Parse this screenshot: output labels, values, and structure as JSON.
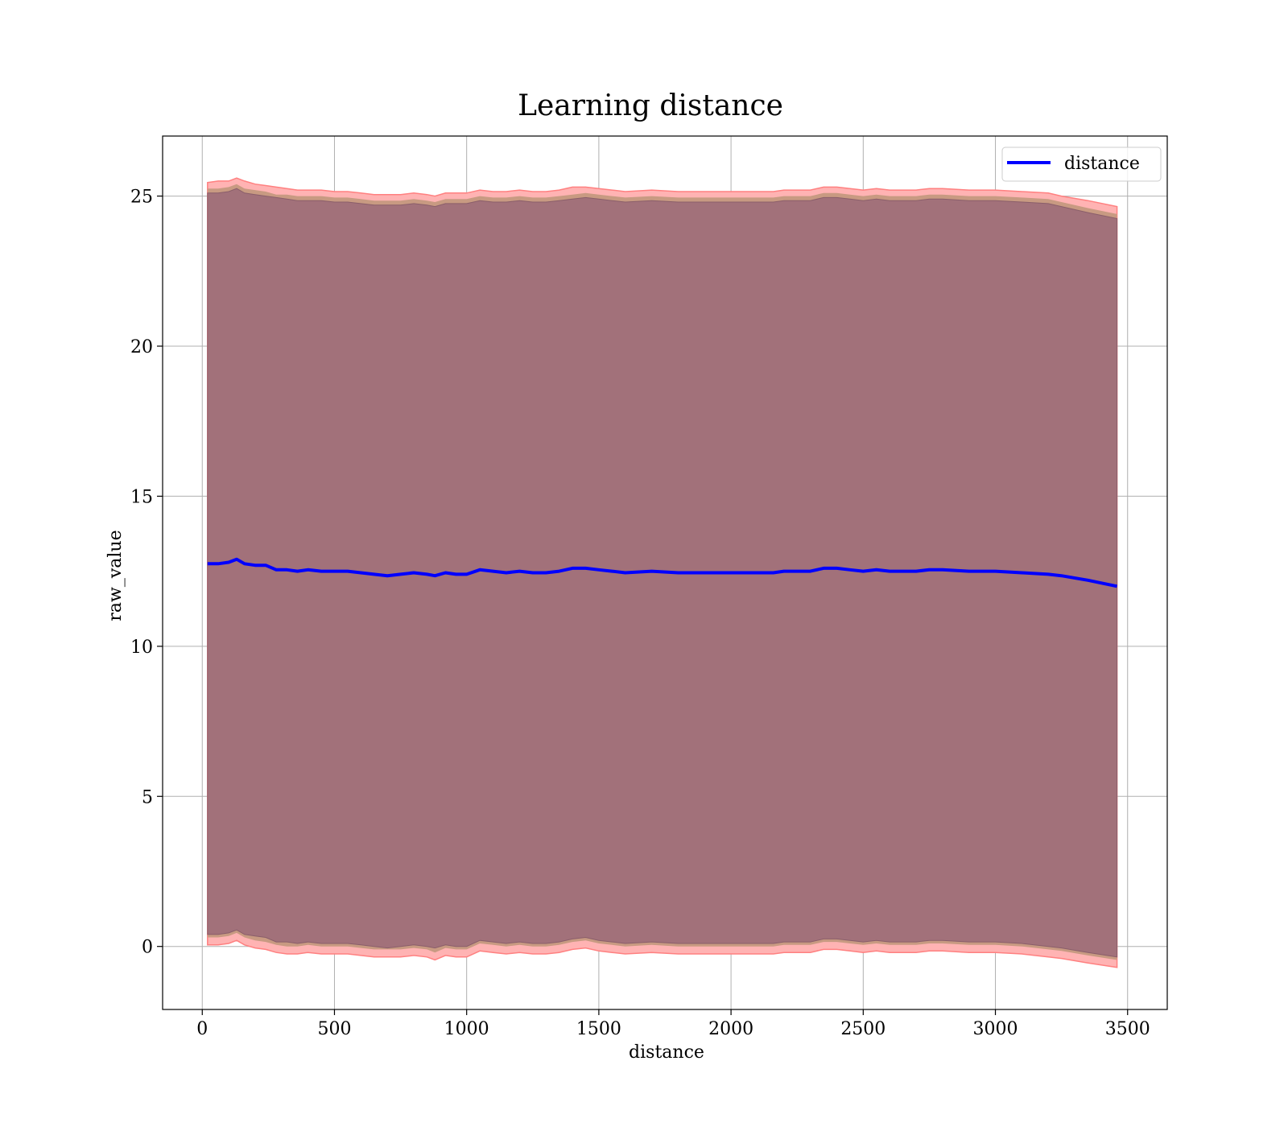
{
  "chart_data": {
    "type": "line",
    "title": "Learning distance",
    "xlabel": "distance",
    "ylabel": "raw_value",
    "xlim": [
      -150,
      3650
    ],
    "ylim": [
      -2.1,
      27
    ],
    "xticks": [
      0,
      500,
      1000,
      1500,
      2000,
      2500,
      3000,
      3500
    ],
    "yticks": [
      0,
      5,
      10,
      15,
      20,
      25
    ],
    "grid": true,
    "legend_position": "top-right",
    "colors": {
      "line": "#0000ff",
      "band_outer": "#ffb3b3",
      "band_outer_edge": "#ff8080",
      "band_mid": "#c89a82",
      "band_inner": "#a2717a",
      "grid": "#b0b0b0"
    },
    "x": [
      20,
      60,
      100,
      130,
      160,
      200,
      240,
      280,
      320,
      360,
      400,
      450,
      500,
      550,
      600,
      650,
      700,
      750,
      800,
      850,
      880,
      920,
      960,
      1000,
      1050,
      1100,
      1150,
      1200,
      1250,
      1300,
      1350,
      1400,
      1450,
      1500,
      1550,
      1600,
      1700,
      1800,
      1900,
      2000,
      2100,
      2160,
      2200,
      2300,
      2350,
      2400,
      2450,
      2500,
      2550,
      2600,
      2700,
      2750,
      2800,
      2900,
      3000,
      3100,
      3200,
      3250,
      3350,
      3460
    ],
    "series": [
      {
        "name": "distance",
        "role": "line",
        "values": [
          12.75,
          12.75,
          12.8,
          12.9,
          12.75,
          12.7,
          12.7,
          12.55,
          12.55,
          12.5,
          12.55,
          12.5,
          12.5,
          12.5,
          12.45,
          12.4,
          12.35,
          12.4,
          12.45,
          12.4,
          12.35,
          12.45,
          12.4,
          12.4,
          12.55,
          12.5,
          12.45,
          12.5,
          12.45,
          12.45,
          12.5,
          12.6,
          12.6,
          12.55,
          12.5,
          12.45,
          12.5,
          12.45,
          12.45,
          12.45,
          12.45,
          12.45,
          12.5,
          12.5,
          12.6,
          12.6,
          12.55,
          12.5,
          12.55,
          12.5,
          12.5,
          12.55,
          12.55,
          12.5,
          12.5,
          12.45,
          12.4,
          12.35,
          12.2,
          12.0
        ]
      },
      {
        "role": "band_outer_upper",
        "values": [
          25.45,
          25.5,
          25.5,
          25.6,
          25.5,
          25.4,
          25.35,
          25.3,
          25.25,
          25.2,
          25.2,
          25.2,
          25.15,
          25.15,
          25.1,
          25.05,
          25.05,
          25.05,
          25.1,
          25.05,
          25.0,
          25.1,
          25.1,
          25.1,
          25.2,
          25.15,
          25.15,
          25.2,
          25.15,
          25.15,
          25.2,
          25.3,
          25.3,
          25.25,
          25.2,
          25.15,
          25.2,
          25.15,
          25.15,
          25.15,
          25.15,
          25.15,
          25.2,
          25.2,
          25.3,
          25.3,
          25.25,
          25.2,
          25.25,
          25.2,
          25.2,
          25.25,
          25.25,
          25.2,
          25.2,
          25.15,
          25.1,
          25.0,
          24.85,
          24.65
        ]
      },
      {
        "role": "band_outer_lower",
        "values": [
          0.05,
          0.05,
          0.1,
          0.2,
          0.05,
          -0.05,
          -0.1,
          -0.2,
          -0.25,
          -0.25,
          -0.2,
          -0.25,
          -0.25,
          -0.25,
          -0.3,
          -0.35,
          -0.35,
          -0.35,
          -0.3,
          -0.35,
          -0.45,
          -0.3,
          -0.35,
          -0.35,
          -0.15,
          -0.2,
          -0.25,
          -0.2,
          -0.25,
          -0.25,
          -0.2,
          -0.1,
          -0.05,
          -0.15,
          -0.2,
          -0.25,
          -0.2,
          -0.25,
          -0.25,
          -0.25,
          -0.25,
          -0.25,
          -0.2,
          -0.2,
          -0.1,
          -0.1,
          -0.15,
          -0.2,
          -0.15,
          -0.2,
          -0.2,
          -0.15,
          -0.15,
          -0.2,
          -0.2,
          -0.25,
          -0.35,
          -0.4,
          -0.55,
          -0.7
        ]
      },
      {
        "role": "band_mid_upper",
        "values": [
          25.25,
          25.25,
          25.3,
          25.4,
          25.25,
          25.2,
          25.15,
          25.05,
          25.05,
          25.0,
          25.0,
          25.0,
          24.95,
          24.95,
          24.9,
          24.85,
          24.85,
          24.85,
          24.9,
          24.85,
          24.8,
          24.9,
          24.9,
          24.9,
          25.0,
          24.95,
          24.95,
          25.0,
          24.95,
          24.95,
          25.0,
          25.05,
          25.1,
          25.05,
          25.0,
          24.95,
          25.0,
          24.95,
          24.95,
          24.95,
          24.95,
          24.95,
          25.0,
          25.0,
          25.1,
          25.1,
          25.05,
          25.0,
          25.05,
          25.0,
          25.0,
          25.05,
          25.05,
          25.0,
          25.0,
          24.95,
          24.9,
          24.8,
          24.6,
          24.4
        ]
      },
      {
        "role": "band_mid_lower",
        "values": [
          0.3,
          0.3,
          0.35,
          0.45,
          0.3,
          0.2,
          0.15,
          0.05,
          0.0,
          0.0,
          0.05,
          0.0,
          0.0,
          0.0,
          -0.05,
          -0.1,
          -0.1,
          -0.1,
          -0.05,
          -0.1,
          -0.2,
          -0.05,
          -0.1,
          -0.1,
          0.1,
          0.05,
          0.0,
          0.05,
          0.0,
          0.0,
          0.05,
          0.15,
          0.2,
          0.1,
          0.05,
          0.0,
          0.05,
          0.0,
          0.0,
          0.0,
          0.0,
          0.0,
          0.05,
          0.05,
          0.15,
          0.15,
          0.1,
          0.05,
          0.1,
          0.05,
          0.05,
          0.1,
          0.1,
          0.05,
          0.05,
          0.0,
          -0.1,
          -0.15,
          -0.3,
          -0.45
        ]
      },
      {
        "role": "band_inner_upper",
        "values": [
          25.1,
          25.1,
          25.15,
          25.25,
          25.1,
          25.05,
          25.0,
          24.95,
          24.9,
          24.85,
          24.85,
          24.85,
          24.8,
          24.8,
          24.75,
          24.7,
          24.7,
          24.7,
          24.75,
          24.7,
          24.65,
          24.75,
          24.75,
          24.75,
          24.85,
          24.8,
          24.8,
          24.85,
          24.8,
          24.8,
          24.85,
          24.9,
          24.95,
          24.9,
          24.85,
          24.8,
          24.85,
          24.8,
          24.8,
          24.8,
          24.8,
          24.8,
          24.85,
          24.85,
          24.95,
          24.95,
          24.9,
          24.85,
          24.9,
          24.85,
          24.85,
          24.9,
          24.9,
          24.85,
          24.85,
          24.8,
          24.75,
          24.65,
          24.45,
          24.25
        ]
      },
      {
        "role": "band_inner_lower",
        "values": [
          0.4,
          0.4,
          0.45,
          0.55,
          0.4,
          0.35,
          0.3,
          0.15,
          0.15,
          0.1,
          0.15,
          0.1,
          0.1,
          0.1,
          0.05,
          0.0,
          -0.05,
          0.0,
          0.05,
          0.0,
          -0.05,
          0.05,
          0.0,
          0.0,
          0.2,
          0.15,
          0.1,
          0.15,
          0.1,
          0.1,
          0.15,
          0.25,
          0.3,
          0.2,
          0.15,
          0.1,
          0.15,
          0.1,
          0.1,
          0.1,
          0.1,
          0.1,
          0.15,
          0.15,
          0.25,
          0.25,
          0.2,
          0.15,
          0.2,
          0.15,
          0.15,
          0.2,
          0.2,
          0.15,
          0.15,
          0.1,
          0.0,
          -0.05,
          -0.2,
          -0.35
        ]
      }
    ]
  }
}
